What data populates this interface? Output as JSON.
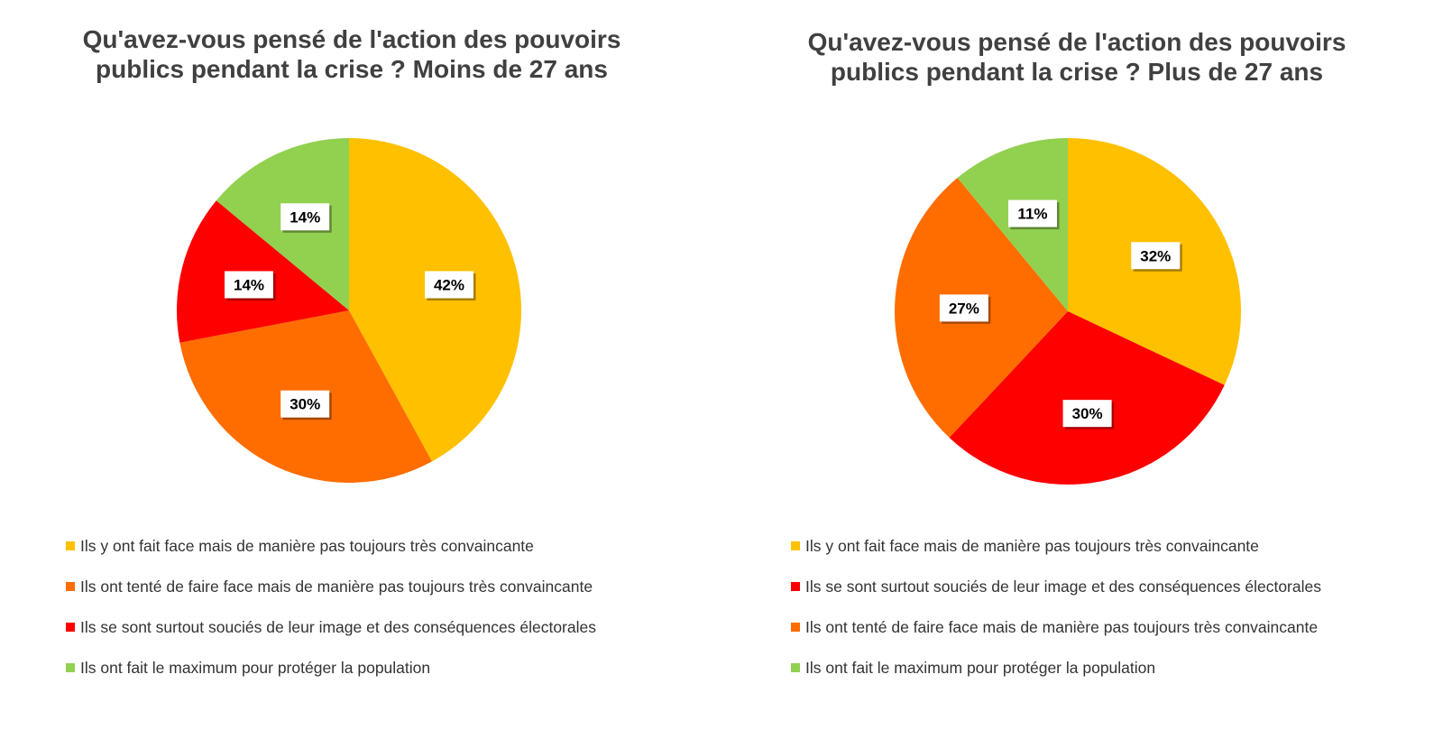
{
  "chart_data": [
    {
      "type": "pie",
      "title": "Qu'avez-vous pensé de l'action des pouvoirs\npublics pendant la crise ? Moins de 27 ans",
      "categories": [
        "Ils y ont fait face mais de manière pas toujours très convaincante",
        "Ils ont tenté de faire face mais de manière pas toujours très convaincante",
        "Ils se sont surtout souciés de leur image et des conséquences électorales",
        "Ils ont fait le maximum pour protéger la population"
      ],
      "values": [
        42,
        30,
        14,
        14
      ],
      "labels": [
        "42%",
        "30%",
        "14%",
        "14%"
      ],
      "colors": [
        "#FFC000",
        "#FF6D00",
        "#FF0000",
        "#92D050"
      ],
      "legend_position": "bottom"
    },
    {
      "type": "pie",
      "title": "Qu'avez-vous pensé de l'action des pouvoirs\npublics pendant la crise ? Plus de 27 ans",
      "categories": [
        "Ils y ont fait face mais de manière pas toujours très convaincante",
        "Ils se sont surtout souciés de leur image et des conséquences électorales",
        "Ils ont tenté de faire face mais de manière pas toujours très convaincante",
        "Ils ont fait le maximum pour protéger la population"
      ],
      "values": [
        32,
        30,
        27,
        11
      ],
      "labels": [
        "32%",
        "30%",
        "27%",
        "11%"
      ],
      "colors": [
        "#FFC000",
        "#FF0000",
        "#FF6D00",
        "#92D050"
      ],
      "legend_position": "bottom"
    }
  ]
}
